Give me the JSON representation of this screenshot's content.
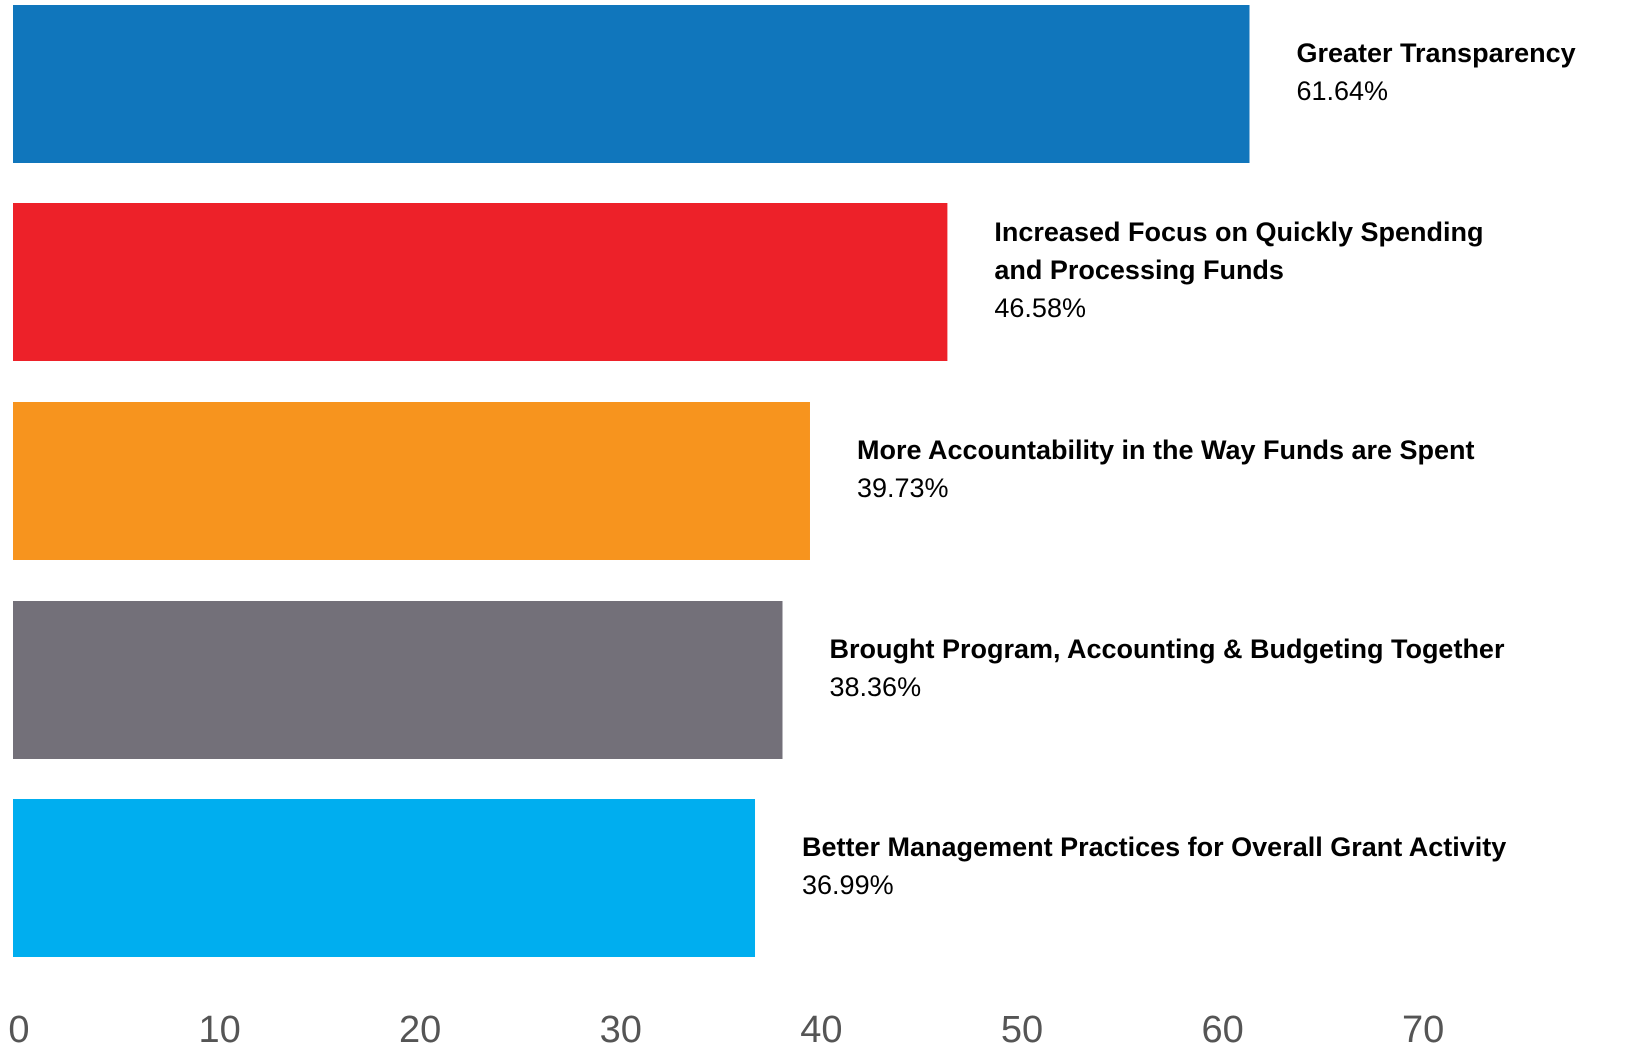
{
  "chart_data": {
    "type": "bar",
    "orientation": "horizontal",
    "categories": [
      "Greater Transparency",
      "Increased Focus on Quickly Spending and Processing Funds",
      "More Accountability in the Way Funds are Spent",
      "Brought Program, Accounting & Budgeting Together",
      "Better Management Practices for Overall Grant Activity"
    ],
    "values": [
      61.64,
      46.58,
      39.73,
      38.36,
      36.99
    ],
    "value_labels": [
      "61.64%",
      "46.58%",
      "39.73%",
      "38.36%",
      "36.99%"
    ],
    "colors": [
      "#1076bc",
      "#ed2129",
      "#f7941e",
      "#737079",
      "#00aeef"
    ],
    "xlim": [
      0,
      80
    ],
    "xticks": [
      0,
      10,
      20,
      30,
      40,
      50,
      60,
      70
    ]
  }
}
